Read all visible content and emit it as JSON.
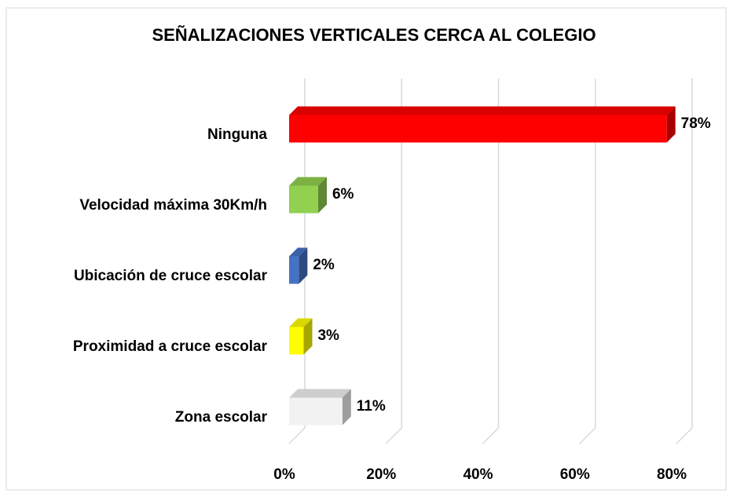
{
  "chart_data": {
    "type": "bar3d_horizontal",
    "title": "SEÑALIZACIONES  VERTICALES CERCA AL COLEGIO",
    "categories": [
      "Ninguna",
      "Velocidad máxima 30Km/h",
      "Ubicación de cruce escolar",
      "Proximidad a cruce escolar",
      "Zona escolar"
    ],
    "values": [
      78,
      6,
      2,
      3,
      11
    ],
    "value_labels": [
      "78%",
      "6%",
      "2%",
      "3%",
      "11%"
    ],
    "colors": [
      "#ff0000",
      "#92d050",
      "#4472c4",
      "#ffff00",
      "#f2f2f2"
    ],
    "xlim": [
      0,
      80
    ],
    "xticks": [
      {
        "value": 0,
        "label": "0%"
      },
      {
        "value": 20,
        "label": "20%"
      },
      {
        "value": 40,
        "label": "40%"
      },
      {
        "value": 60,
        "label": "60%"
      },
      {
        "value": 80,
        "label": "80%"
      }
    ],
    "grid": true
  }
}
